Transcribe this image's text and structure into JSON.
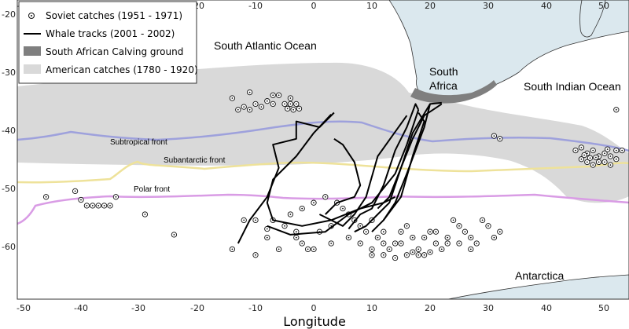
{
  "map": {
    "xlabel": "Longitude",
    "x_ticks": [
      "-50",
      "-40",
      "-30",
      "-20",
      "-10",
      "0",
      "10",
      "20",
      "30",
      "40",
      "50"
    ],
    "y_ticks": [
      "-20",
      "-30",
      "-40",
      "-50",
      "-60"
    ],
    "labels": {
      "atlantic": "South Atlantic Ocean",
      "indian": "South Indian Ocean",
      "south": "South",
      "africa": "Africa",
      "antarctica": "Antarctica"
    },
    "fronts": {
      "subtropical": "Subtropical front",
      "subantarctic": "Subantarctic front",
      "polar": "Polar front"
    },
    "colors": {
      "land": "#dbe8ee",
      "american_catches": "#d9d9d9",
      "calving": "#7f7f7f",
      "subtropical_front": "#9ea1dc",
      "subantarctic_front": "#eee29a",
      "polar_front": "#d99ce5",
      "tracks": "#000000"
    }
  },
  "legend": {
    "items": [
      {
        "label": "Soviet catches (1951 - 1971)",
        "symbol": "circle-dot"
      },
      {
        "label": "Whale tracks (2001 - 2002)",
        "symbol": "line"
      },
      {
        "label": "South African Calving ground",
        "symbol": "dark-box"
      },
      {
        "label": "American catches (1780 - 1920)",
        "symbol": "light-box"
      }
    ]
  },
  "soviet_catches": [
    [
      -13,
      -37
    ],
    [
      -12,
      -36.5
    ],
    [
      -11,
      -37
    ],
    [
      -10,
      -36
    ],
    [
      -9,
      -36.5
    ],
    [
      -8,
      -35.5
    ],
    [
      -7,
      -36
    ],
    [
      -6,
      -34.5
    ],
    [
      -5,
      -36
    ],
    [
      -4.5,
      -36.8
    ],
    [
      -4,
      -36
    ],
    [
      -3.5,
      -37
    ],
    [
      -3,
      -36
    ],
    [
      -2.5,
      -36.8
    ],
    [
      -14,
      -35
    ],
    [
      -11,
      -34
    ],
    [
      -7,
      -34.5
    ],
    [
      -4,
      -35
    ],
    [
      -46,
      -52
    ],
    [
      -41,
      -51
    ],
    [
      -40,
      -52.5
    ],
    [
      -39,
      -53.5
    ],
    [
      -38,
      -53.5
    ],
    [
      -37,
      -53.5
    ],
    [
      -36,
      -53.5
    ],
    [
      -35,
      -53.5
    ],
    [
      -34,
      -52
    ],
    [
      -29,
      -55
    ],
    [
      -24,
      -58.5
    ],
    [
      -14,
      -61
    ],
    [
      -10,
      -62
    ],
    [
      -8,
      -59
    ],
    [
      -6,
      -61
    ],
    [
      -5,
      -57
    ],
    [
      -3,
      -58
    ],
    [
      -2,
      -60
    ],
    [
      -1,
      -61
    ],
    [
      1,
      -58
    ],
    [
      3,
      -57
    ],
    [
      5,
      -54
    ],
    [
      6,
      -55
    ],
    [
      7,
      -56
    ],
    [
      8,
      -57
    ],
    [
      9,
      -58
    ],
    [
      10,
      -56
    ],
    [
      11,
      -59
    ],
    [
      12,
      -60
    ],
    [
      13,
      -61
    ],
    [
      14,
      -60
    ],
    [
      15,
      -58
    ],
    [
      16,
      -57
    ],
    [
      17,
      -59
    ],
    [
      18,
      -61
    ],
    [
      19,
      -59
    ],
    [
      20,
      -58
    ],
    [
      21,
      -60
    ],
    [
      22,
      -61
    ],
    [
      23,
      -59
    ],
    [
      24,
      -56
    ],
    [
      25,
      -57
    ],
    [
      26,
      -58
    ],
    [
      27,
      -59
    ],
    [
      28,
      -60
    ],
    [
      29,
      -56
    ],
    [
      30,
      -57
    ],
    [
      31,
      -59
    ],
    [
      10,
      -62
    ],
    [
      12,
      -62
    ],
    [
      14,
      -62.5
    ],
    [
      16,
      -62
    ],
    [
      18,
      -62
    ],
    [
      20,
      -61.5
    ],
    [
      -12,
      -56
    ],
    [
      -10,
      -56
    ],
    [
      -7,
      -56
    ],
    [
      -4,
      -55
    ],
    [
      -2,
      -54
    ],
    [
      0,
      -53
    ],
    [
      2,
      -52
    ],
    [
      4,
      -53
    ],
    [
      -8,
      -57.5
    ],
    [
      -3,
      -59
    ],
    [
      0,
      -61
    ],
    [
      3,
      -60
    ],
    [
      6,
      -59
    ],
    [
      8,
      -60
    ],
    [
      10,
      -61
    ],
    [
      12,
      -58
    ],
    [
      15,
      -60
    ],
    [
      17,
      -61.5
    ],
    [
      19,
      -62
    ],
    [
      21,
      -58
    ],
    [
      23,
      -60
    ],
    [
      25,
      -60
    ],
    [
      27,
      -61
    ],
    [
      32,
      -58
    ],
    [
      31,
      -41.5
    ],
    [
      32,
      -42
    ],
    [
      45,
      -44
    ],
    [
      46,
      -43.5
    ],
    [
      47,
      -44.5
    ],
    [
      48,
      -44
    ],
    [
      49,
      -45
    ],
    [
      50,
      -44.5
    ],
    [
      51,
      -45
    ],
    [
      52,
      -44
    ],
    [
      46,
      -45.5
    ],
    [
      47,
      -46
    ],
    [
      48,
      -46.5
    ],
    [
      49,
      -46
    ],
    [
      50,
      -46
    ],
    [
      51,
      -46.5
    ],
    [
      52,
      -45.5
    ],
    [
      53,
      -44
    ],
    [
      46.5,
      -44.8
    ],
    [
      48.5,
      -45.2
    ],
    [
      50.5,
      -43.8
    ],
    [
      47.5,
      -45.3
    ],
    [
      52,
      -37
    ]
  ],
  "tracks": [
    [
      [
        18,
        -37
      ],
      [
        17.5,
        -36
      ],
      [
        16,
        -40
      ],
      [
        14,
        -44
      ],
      [
        12,
        -50
      ],
      [
        10,
        -54
      ],
      [
        8,
        -55
      ],
      [
        6,
        -57.5
      ]
    ],
    [
      [
        18,
        -37.5
      ],
      [
        19,
        -39
      ],
      [
        17,
        -45
      ],
      [
        15,
        -52
      ],
      [
        12,
        -56
      ],
      [
        10,
        -58
      ]
    ],
    [
      [
        20,
        -36
      ],
      [
        17,
        -41
      ],
      [
        15,
        -47
      ],
      [
        13,
        -53
      ],
      [
        11,
        -55
      ],
      [
        9,
        -57
      ],
      [
        7,
        -58
      ]
    ],
    [
      [
        22,
        -35.8
      ],
      [
        20,
        -36
      ],
      [
        19,
        -40
      ],
      [
        16,
        -48
      ],
      [
        14,
        -53
      ],
      [
        12,
        -56
      ]
    ],
    [
      [
        18,
        -37
      ],
      [
        16,
        -43
      ],
      [
        14,
        -48
      ],
      [
        10,
        -53
      ],
      [
        6,
        -55
      ],
      [
        2,
        -58
      ],
      [
        -4,
        -58.5
      ],
      [
        -8,
        -57
      ]
    ],
    [
      [
        3.5,
        -37.5
      ],
      [
        1,
        -40
      ],
      [
        -3,
        -39
      ],
      [
        -3,
        -42
      ],
      [
        -7,
        -43
      ],
      [
        -6,
        -47
      ],
      [
        -8,
        -52
      ],
      [
        -11,
        -56
      ],
      [
        -12,
        -58
      ],
      [
        -13,
        -60
      ]
    ],
    [
      [
        3,
        -37.8
      ],
      [
        0,
        -41
      ],
      [
        -3,
        -45
      ],
      [
        -7,
        -49
      ],
      [
        -8,
        -53
      ],
      [
        -7,
        -56
      ],
      [
        -2,
        -57
      ],
      [
        3,
        -56
      ],
      [
        8,
        -54
      ],
      [
        12,
        -53
      ],
      [
        14,
        -52
      ]
    ],
    [
      [
        3.5,
        -42
      ],
      [
        5,
        -43
      ],
      [
        7,
        -46
      ],
      [
        8,
        -50
      ],
      [
        7,
        -52
      ],
      [
        4,
        -53
      ],
      [
        2,
        -55
      ]
    ],
    [
      [
        16,
        -38
      ],
      [
        11,
        -45
      ],
      [
        9,
        -52
      ],
      [
        7,
        -55
      ],
      [
        5,
        -57
      ],
      [
        3,
        -56
      ],
      [
        1,
        -55
      ]
    ],
    [
      [
        22,
        -36
      ],
      [
        19,
        -38
      ],
      [
        17,
        -42
      ],
      [
        15,
        -47
      ],
      [
        13,
        -52
      ],
      [
        11,
        -54
      ]
    ]
  ]
}
